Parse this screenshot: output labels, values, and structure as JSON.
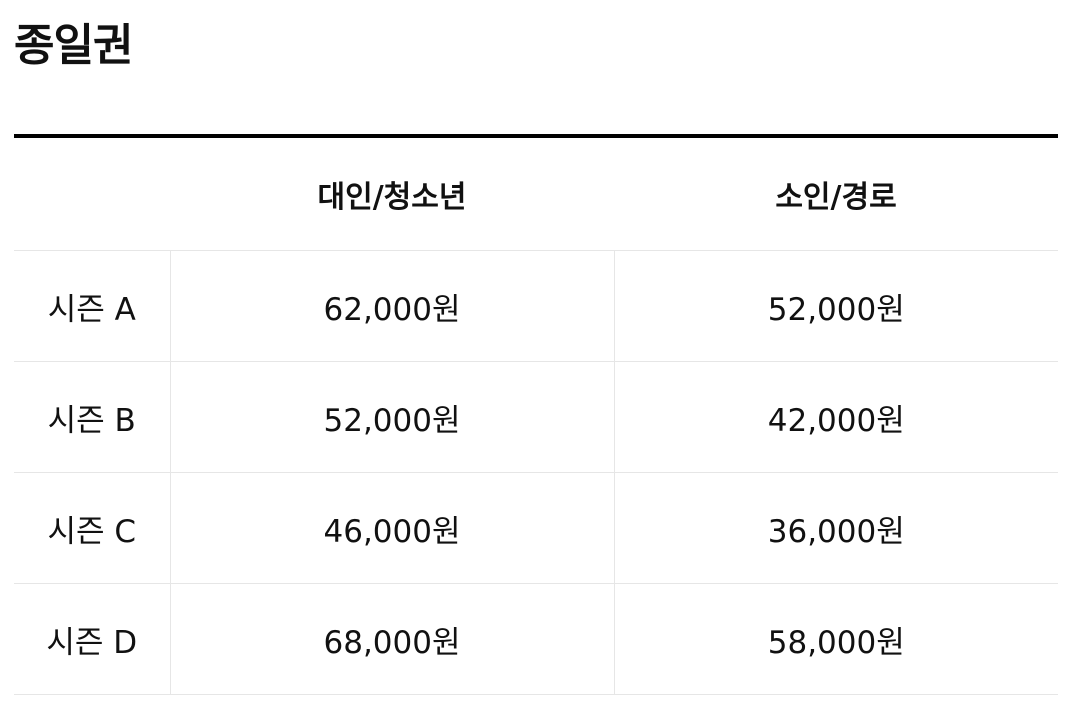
{
  "page": {
    "title": "종일권"
  },
  "table": {
    "headers": {
      "season": "",
      "adult": "대인/청소년",
      "child": "소인/경로"
    },
    "rows": [
      {
        "season": "시즌 A",
        "adult": "62,000원",
        "child": "52,000원"
      },
      {
        "season": "시즌 B",
        "adult": "52,000원",
        "child": "42,000원"
      },
      {
        "season": "시즌 C",
        "adult": "46,000원",
        "child": "36,000원"
      },
      {
        "season": "시즌 D",
        "adult": "68,000원",
        "child": "58,000원"
      }
    ]
  }
}
